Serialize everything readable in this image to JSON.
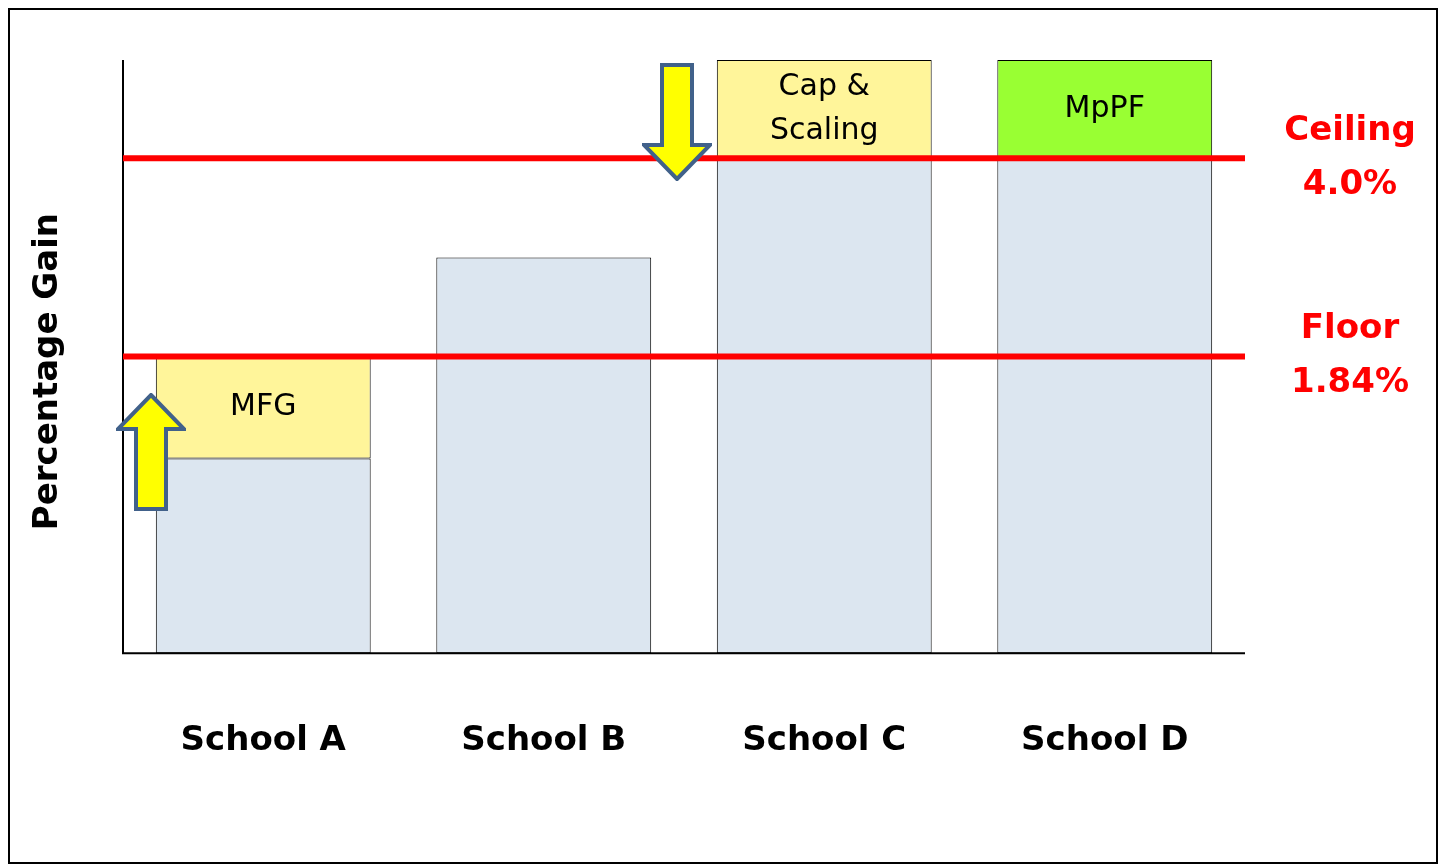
{
  "chart_data": {
    "type": "bar",
    "ylabel": "Percentage Gain",
    "categories": [
      "School A",
      "School B",
      "School C",
      "School D"
    ],
    "legend": false,
    "grid": false,
    "ylim": [
      -1.39,
      5.07
    ],
    "series": [
      {
        "color": "#dce6f0",
        "base": [
          -1.39,
          -1.39,
          -1.39,
          -1.39
        ],
        "values": [
          2.12,
          4.31,
          5.39,
          5.39
        ]
      },
      {
        "colors": [
          "#fff59a",
          "#fff59a",
          "#fff59a",
          "#99ff33"
        ],
        "base": [
          0.73,
          null,
          4.0,
          4.0
        ],
        "values": [
          1.11,
          null,
          1.07,
          1.07
        ],
        "value_labels": [
          "MFG",
          null,
          "Cap & Scaling",
          "MpPF"
        ]
      }
    ],
    "ref_lines": [
      {
        "axis": "y",
        "value": 4.0,
        "label": "Ceiling 4.0%",
        "color": "#ff0000"
      },
      {
        "axis": "y",
        "value": 1.84,
        "label": "Floor 1.84%",
        "color": "#ff0000"
      }
    ]
  }
}
